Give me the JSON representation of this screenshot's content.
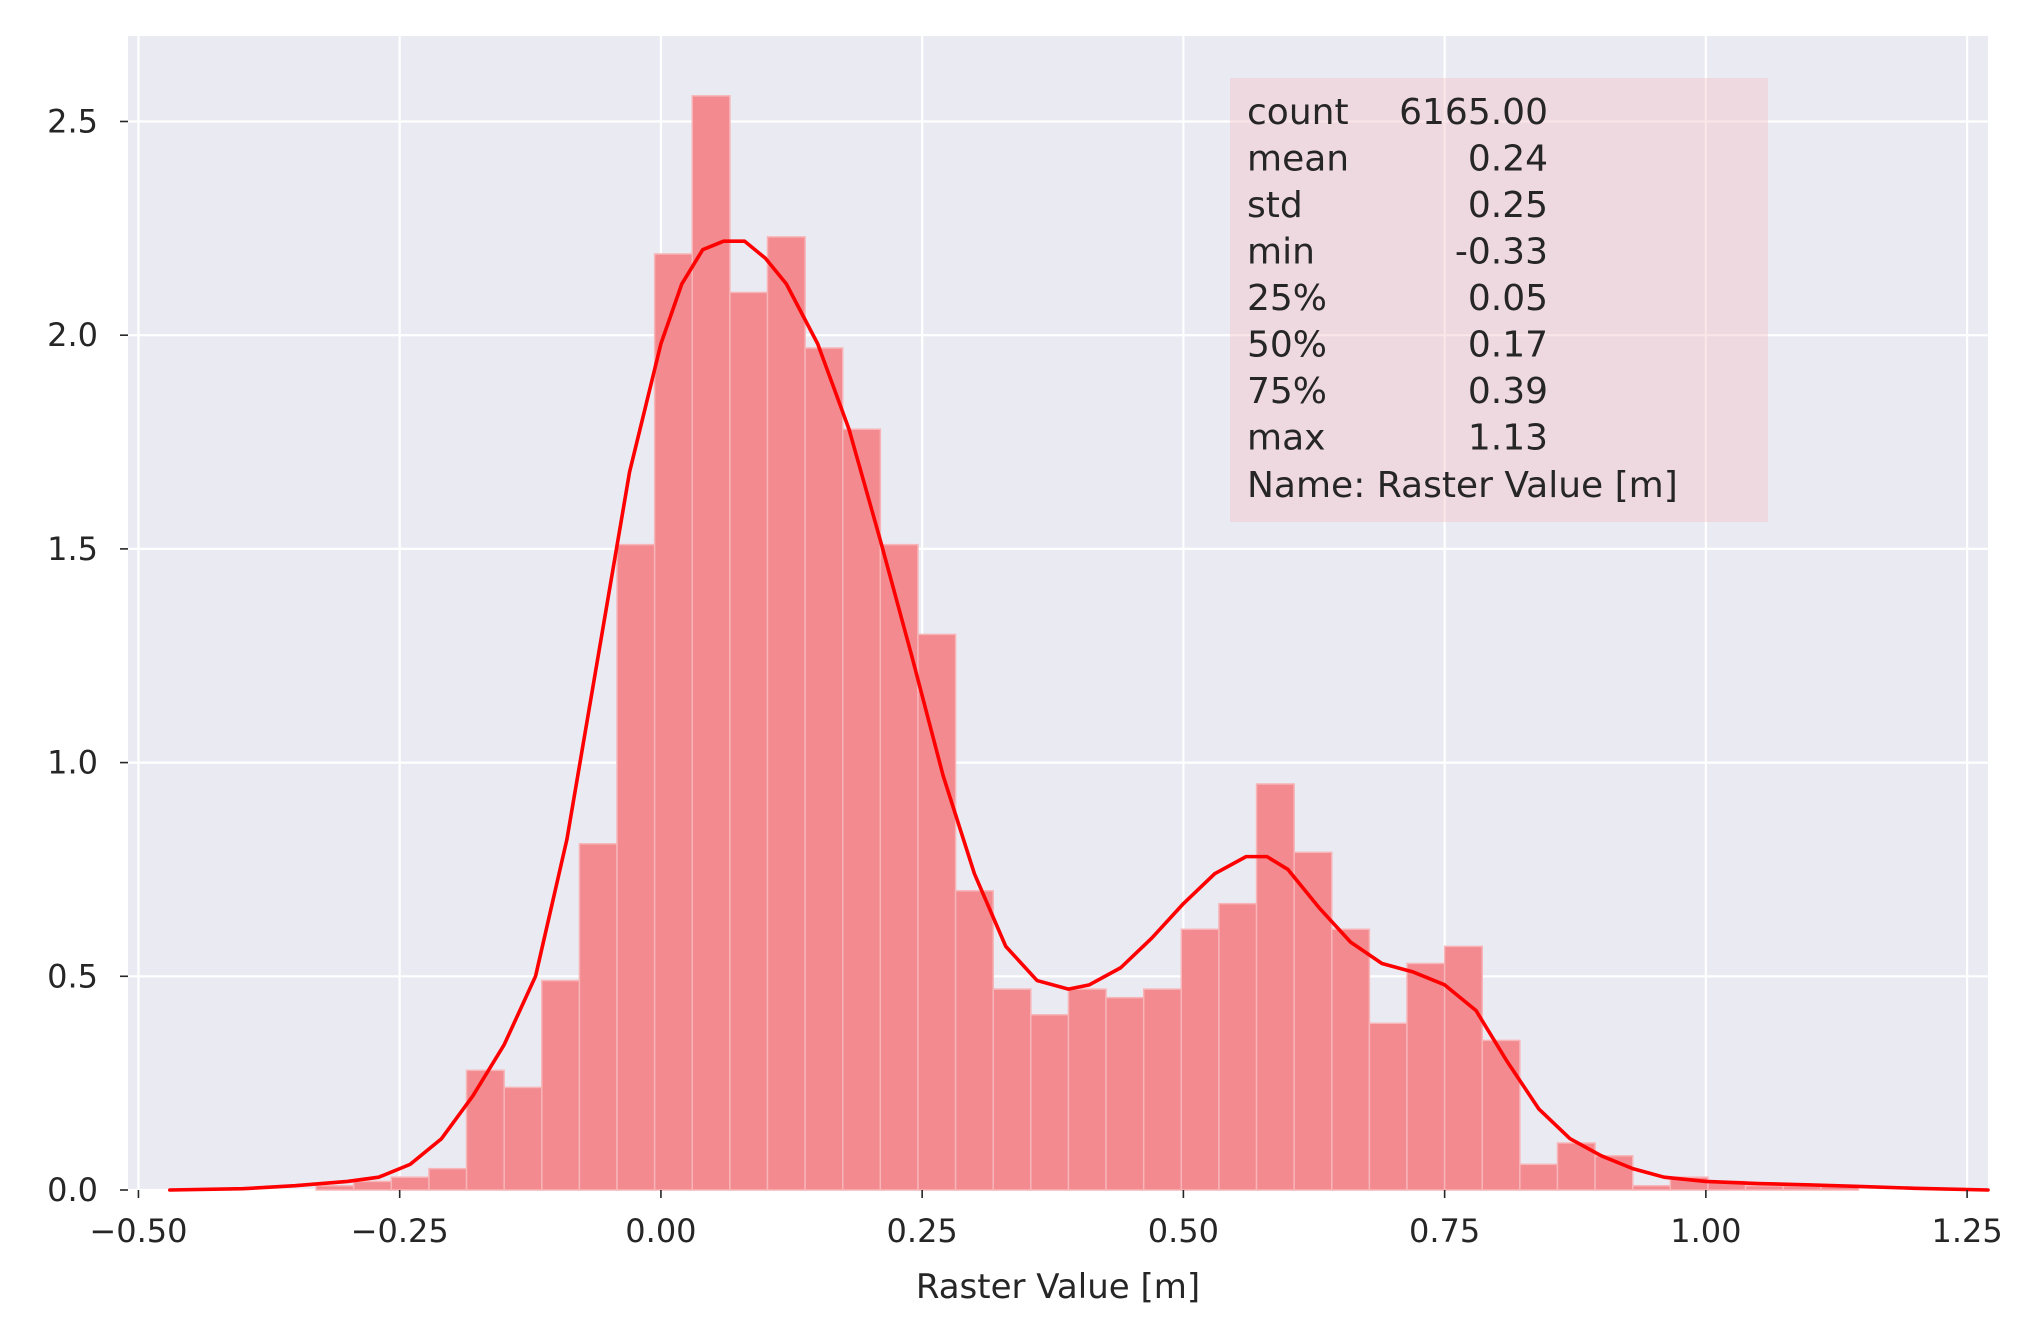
{
  "chart_data": {
    "type": "bar",
    "title": "",
    "xlabel": "Raster Value [m]",
    "ylabel": "",
    "xlim": [
      -0.51,
      1.27
    ],
    "ylim": [
      0,
      2.7
    ],
    "grid": true,
    "background_color": "#eaeaf2",
    "bar_color": "#f28a8f",
    "kde_color": "#ff0000",
    "x_ticks": [
      -0.5,
      -0.25,
      0.0,
      0.25,
      0.5,
      0.75,
      1.0,
      1.25
    ],
    "x_tick_labels": [
      "−0.50",
      "−0.25",
      "0.00",
      "0.25",
      "0.50",
      "0.75",
      "1.00",
      "1.25"
    ],
    "y_ticks": [
      0.0,
      0.5,
      1.0,
      1.5,
      2.0,
      2.5
    ],
    "y_tick_labels": [
      "0.0",
      "0.5",
      "1.0",
      "1.5",
      "2.0",
      "2.5"
    ],
    "bin_edges": [
      -0.33,
      -0.294,
      -0.258,
      -0.222,
      -0.186,
      -0.15,
      -0.114,
      -0.078,
      -0.042,
      -0.006,
      0.03,
      0.066,
      0.102,
      0.138,
      0.174,
      0.21,
      0.246,
      0.282,
      0.318,
      0.354,
      0.39,
      0.426,
      0.462,
      0.498,
      0.534,
      0.57,
      0.606,
      0.642,
      0.678,
      0.714,
      0.75,
      0.786,
      0.822,
      0.858,
      0.894,
      0.93,
      0.966,
      1.002,
      1.038,
      1.074,
      1.11,
      1.146
    ],
    "bar_heights": [
      0.01,
      0.02,
      0.03,
      0.05,
      0.28,
      0.24,
      0.49,
      0.81,
      1.51,
      2.19,
      2.56,
      2.1,
      2.23,
      1.97,
      1.78,
      1.51,
      1.3,
      0.7,
      0.47,
      0.41,
      0.47,
      0.45,
      0.47,
      0.61,
      0.67,
      0.95,
      0.79,
      0.61,
      0.39,
      0.53,
      0.57,
      0.35,
      0.06,
      0.11,
      0.08,
      0.01,
      0.03,
      0.02,
      0.01,
      0.01,
      0.01
    ],
    "kde": {
      "x": [
        -0.47,
        -0.4,
        -0.35,
        -0.3,
        -0.27,
        -0.24,
        -0.21,
        -0.18,
        -0.15,
        -0.12,
        -0.09,
        -0.06,
        -0.03,
        0.0,
        0.02,
        0.04,
        0.06,
        0.08,
        0.1,
        0.12,
        0.15,
        0.18,
        0.21,
        0.24,
        0.27,
        0.3,
        0.33,
        0.36,
        0.39,
        0.41,
        0.44,
        0.47,
        0.5,
        0.53,
        0.56,
        0.58,
        0.6,
        0.63,
        0.66,
        0.69,
        0.72,
        0.75,
        0.78,
        0.81,
        0.84,
        0.87,
        0.9,
        0.93,
        0.96,
        1.0,
        1.05,
        1.1,
        1.15,
        1.2,
        1.27
      ],
      "y": [
        0.0,
        0.003,
        0.01,
        0.02,
        0.03,
        0.06,
        0.12,
        0.22,
        0.34,
        0.5,
        0.82,
        1.25,
        1.68,
        1.98,
        2.12,
        2.2,
        2.22,
        2.22,
        2.18,
        2.12,
        1.98,
        1.78,
        1.52,
        1.25,
        0.97,
        0.74,
        0.57,
        0.49,
        0.47,
        0.48,
        0.52,
        0.59,
        0.67,
        0.74,
        0.78,
        0.78,
        0.75,
        0.66,
        0.58,
        0.53,
        0.51,
        0.48,
        0.42,
        0.3,
        0.19,
        0.12,
        0.08,
        0.05,
        0.03,
        0.02,
        0.015,
        0.012,
        0.008,
        0.004,
        0.0
      ]
    },
    "annotation_lines": [
      {
        "label": "count",
        "value": "6165.00"
      },
      {
        "label": "mean",
        "value": "0.24"
      },
      {
        "label": "std",
        "value": "0.25"
      },
      {
        "label": "min",
        "value": "-0.33"
      },
      {
        "label": "25%",
        "value": "0.05"
      },
      {
        "label": "50%",
        "value": "0.17"
      },
      {
        "label": "75%",
        "value": "0.39"
      },
      {
        "label": "max",
        "value": "1.13"
      }
    ],
    "annotation_name": "Name: Raster Value [m]"
  }
}
